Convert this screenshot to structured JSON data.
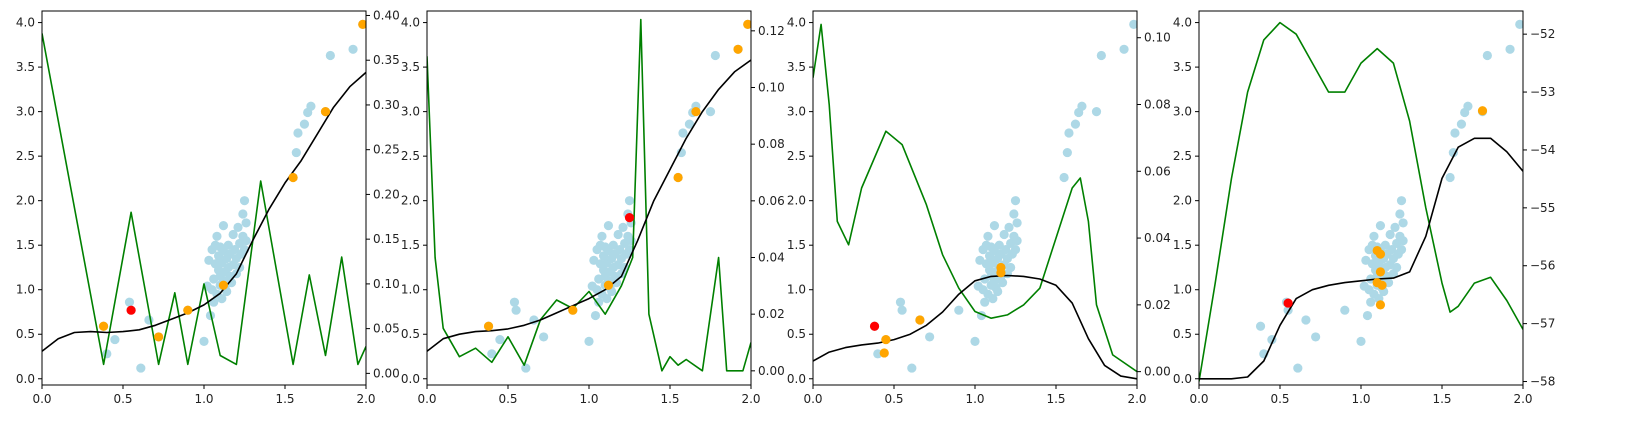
{
  "chart_data": [
    {
      "type": "scatter",
      "xlim": [
        0,
        2
      ],
      "ylim": [
        -0.07,
        4.13
      ],
      "y2lim": [
        -0.013,
        0.405
      ],
      "xticks": [
        "0.0",
        "0.5",
        "1.0",
        "1.5",
        "2.0"
      ],
      "yticks": [
        "0.0",
        "0.5",
        "1.0",
        "1.5",
        "2.0",
        "2.5",
        "3.0",
        "3.5",
        "4.0"
      ],
      "y2ticks": [
        "0.00",
        "0.05",
        "0.10",
        "0.15",
        "0.20",
        "0.25",
        "0.30",
        "0.35",
        "0.40"
      ],
      "colors": {
        "observations": "#add8e6",
        "selected": "#ffa500",
        "next": "#ff0000",
        "mean": "#000000",
        "acquisition": "#008000"
      },
      "selected_points": [
        [
          0.38,
          0.59
        ],
        [
          0.72,
          0.47
        ],
        [
          0.9,
          0.77
        ],
        [
          1.12,
          1.05
        ],
        [
          1.55,
          2.26
        ],
        [
          1.75,
          3.0
        ],
        [
          1.98,
          3.98
        ]
      ],
      "next_point": [
        0.55,
        0.77
      ],
      "mean_curve": [
        [
          0.0,
          0.31
        ],
        [
          0.1,
          0.45
        ],
        [
          0.2,
          0.52
        ],
        [
          0.3,
          0.53
        ],
        [
          0.4,
          0.52
        ],
        [
          0.5,
          0.53
        ],
        [
          0.6,
          0.55
        ],
        [
          0.7,
          0.6
        ],
        [
          0.8,
          0.67
        ],
        [
          0.9,
          0.74
        ],
        [
          1.0,
          0.83
        ],
        [
          1.1,
          0.96
        ],
        [
          1.2,
          1.18
        ],
        [
          1.3,
          1.55
        ],
        [
          1.4,
          1.9
        ],
        [
          1.5,
          2.2
        ],
        [
          1.6,
          2.45
        ],
        [
          1.7,
          2.75
        ],
        [
          1.8,
          3.05
        ],
        [
          1.9,
          3.28
        ],
        [
          2.0,
          3.44
        ]
      ],
      "acquisition_curve": [
        [
          0.0,
          0.38
        ],
        [
          0.38,
          0.01
        ],
        [
          0.55,
          0.18
        ],
        [
          0.72,
          0.01
        ],
        [
          0.82,
          0.09
        ],
        [
          0.9,
          0.01
        ],
        [
          1.0,
          0.1
        ],
        [
          1.1,
          0.02
        ],
        [
          1.2,
          0.01
        ],
        [
          1.35,
          0.215
        ],
        [
          1.55,
          0.01
        ],
        [
          1.65,
          0.11
        ],
        [
          1.75,
          0.02
        ],
        [
          1.85,
          0.13
        ],
        [
          1.95,
          0.01
        ],
        [
          2.0,
          0.03
        ]
      ]
    },
    {
      "type": "scatter",
      "xlim": [
        0,
        2
      ],
      "ylim": [
        -0.07,
        4.13
      ],
      "y2lim": [
        -0.005,
        0.127
      ],
      "xticks": [
        "0.0",
        "0.5",
        "1.0",
        "1.5",
        "2.0"
      ],
      "yticks": [
        "0.0",
        "0.5",
        "1.0",
        "1.5",
        "2.0",
        "2.5",
        "3.0",
        "3.5",
        "4.0"
      ],
      "y2ticks": [
        "0.00",
        "0.02",
        "0.04",
        "0.06",
        "0.08",
        "0.10",
        "0.12"
      ],
      "colors": {
        "observations": "#add8e6",
        "selected": "#ffa500",
        "next": "#ff0000",
        "mean": "#000000",
        "acquisition": "#008000"
      },
      "selected_points": [
        [
          0.38,
          0.59
        ],
        [
          0.9,
          0.77
        ],
        [
          1.12,
          1.05
        ],
        [
          1.55,
          2.26
        ],
        [
          1.66,
          3.0
        ],
        [
          1.92,
          3.7
        ],
        [
          1.98,
          3.98
        ]
      ],
      "next_point": [
        1.25,
        1.81
      ],
      "mean_curve": [
        [
          0.0,
          0.31
        ],
        [
          0.1,
          0.45
        ],
        [
          0.2,
          0.5
        ],
        [
          0.3,
          0.53
        ],
        [
          0.4,
          0.54
        ],
        [
          0.5,
          0.56
        ],
        [
          0.6,
          0.6
        ],
        [
          0.7,
          0.66
        ],
        [
          0.8,
          0.74
        ],
        [
          0.9,
          0.82
        ],
        [
          1.0,
          0.9
        ],
        [
          1.1,
          1.0
        ],
        [
          1.2,
          1.15
        ],
        [
          1.3,
          1.55
        ],
        [
          1.4,
          2.0
        ],
        [
          1.5,
          2.35
        ],
        [
          1.6,
          2.7
        ],
        [
          1.7,
          3.0
        ],
        [
          1.8,
          3.25
        ],
        [
          1.9,
          3.45
        ],
        [
          2.0,
          3.58
        ]
      ],
      "acquisition_curve": [
        [
          0.0,
          0.111
        ],
        [
          0.05,
          0.04
        ],
        [
          0.1,
          0.015
        ],
        [
          0.2,
          0.005
        ],
        [
          0.3,
          0.008
        ],
        [
          0.4,
          0.003
        ],
        [
          0.5,
          0.012
        ],
        [
          0.6,
          0.002
        ],
        [
          0.7,
          0.018
        ],
        [
          0.8,
          0.025
        ],
        [
          0.9,
          0.022
        ],
        [
          1.0,
          0.028
        ],
        [
          1.1,
          0.02
        ],
        [
          1.2,
          0.03
        ],
        [
          1.27,
          0.04
        ],
        [
          1.32,
          0.124
        ],
        [
          1.37,
          0.02
        ],
        [
          1.45,
          0.0
        ],
        [
          1.5,
          0.005
        ],
        [
          1.55,
          0.002
        ],
        [
          1.6,
          0.004
        ],
        [
          1.7,
          0.0
        ],
        [
          1.8,
          0.04
        ],
        [
          1.85,
          0.0
        ],
        [
          1.95,
          0.0
        ],
        [
          2.0,
          0.01
        ]
      ]
    },
    {
      "type": "scatter",
      "xlim": [
        0,
        2
      ],
      "ylim": [
        -0.07,
        4.13
      ],
      "y2lim": [
        -0.004,
        0.108
      ],
      "xticks": [
        "0.0",
        "0.5",
        "1.0",
        "1.5",
        "2.0"
      ],
      "yticks": [
        "0.0",
        "0.5",
        "1.0",
        "1.5",
        "2.0",
        "2.5",
        "3.0",
        "3.5",
        "4.0"
      ],
      "y2ticks": [
        "0.00",
        "0.02",
        "0.04",
        "0.06",
        "0.08",
        "0.10"
      ],
      "colors": {
        "observations": "#add8e6",
        "selected": "#ffa500",
        "next": "#ff0000",
        "mean": "#000000",
        "acquisition": "#008000"
      },
      "selected_points": [
        [
          0.44,
          0.29
        ],
        [
          0.45,
          0.44
        ],
        [
          0.66,
          0.66
        ],
        [
          1.16,
          1.25
        ],
        [
          1.16,
          1.19
        ]
      ],
      "next_point": [
        0.38,
        0.59
      ],
      "mean_curve": [
        [
          0.0,
          0.2
        ],
        [
          0.1,
          0.3
        ],
        [
          0.2,
          0.35
        ],
        [
          0.3,
          0.38
        ],
        [
          0.4,
          0.4
        ],
        [
          0.5,
          0.44
        ],
        [
          0.6,
          0.5
        ],
        [
          0.7,
          0.6
        ],
        [
          0.8,
          0.75
        ],
        [
          0.9,
          0.95
        ],
        [
          1.0,
          1.1
        ],
        [
          1.1,
          1.15
        ],
        [
          1.2,
          1.16
        ],
        [
          1.3,
          1.15
        ],
        [
          1.4,
          1.12
        ],
        [
          1.5,
          1.05
        ],
        [
          1.6,
          0.85
        ],
        [
          1.7,
          0.45
        ],
        [
          1.8,
          0.15
        ],
        [
          1.9,
          0.03
        ],
        [
          2.0,
          0.0
        ]
      ],
      "acquisition_curve": [
        [
          0.0,
          0.088
        ],
        [
          0.05,
          0.104
        ],
        [
          0.1,
          0.08
        ],
        [
          0.15,
          0.045
        ],
        [
          0.22,
          0.038
        ],
        [
          0.3,
          0.055
        ],
        [
          0.45,
          0.072
        ],
        [
          0.55,
          0.068
        ],
        [
          0.7,
          0.05
        ],
        [
          0.8,
          0.035
        ],
        [
          0.9,
          0.025
        ],
        [
          1.0,
          0.018
        ],
        [
          1.1,
          0.016
        ],
        [
          1.2,
          0.017
        ],
        [
          1.3,
          0.02
        ],
        [
          1.4,
          0.025
        ],
        [
          1.5,
          0.04
        ],
        [
          1.6,
          0.055
        ],
        [
          1.65,
          0.058
        ],
        [
          1.7,
          0.045
        ],
        [
          1.75,
          0.02
        ],
        [
          1.85,
          0.005
        ],
        [
          2.0,
          0.0
        ]
      ]
    },
    {
      "type": "scatter",
      "xlim": [
        0,
        2
      ],
      "ylim": [
        -0.07,
        4.13
      ],
      "y2lim": [
        -58.06,
        -51.6
      ],
      "xticks": [
        "0.0",
        "0.5",
        "1.0",
        "1.5",
        "2.0"
      ],
      "yticks": [
        "0.0",
        "0.5",
        "1.0",
        "1.5",
        "2.0",
        "2.5",
        "3.0",
        "3.5",
        "4.0"
      ],
      "y2ticks": [
        "−52",
        "−53",
        "−54",
        "−55",
        "−56",
        "−57",
        "−58"
      ],
      "y2tick_values": [
        -52,
        -53,
        -54,
        -55,
        -56,
        -57,
        -58
      ],
      "colors": {
        "observations": "#add8e6",
        "selected": "#ffa500",
        "next": "#ff0000",
        "mean": "#000000",
        "acquisition": "#008000"
      },
      "selected_points": [
        [
          1.1,
          1.44
        ],
        [
          1.12,
          1.4
        ],
        [
          1.1,
          1.08
        ],
        [
          1.13,
          1.05
        ],
        [
          1.12,
          1.2
        ],
        [
          1.12,
          0.83
        ],
        [
          1.75,
          3.01
        ]
      ],
      "next_point": [
        0.55,
        0.85
      ],
      "mean_curve": [
        [
          0.0,
          0.0
        ],
        [
          0.1,
          0.0
        ],
        [
          0.2,
          0.0
        ],
        [
          0.3,
          0.02
        ],
        [
          0.4,
          0.2
        ],
        [
          0.5,
          0.6
        ],
        [
          0.6,
          0.9
        ],
        [
          0.7,
          1.0
        ],
        [
          0.8,
          1.05
        ],
        [
          0.9,
          1.08
        ],
        [
          1.0,
          1.1
        ],
        [
          1.1,
          1.12
        ],
        [
          1.2,
          1.13
        ],
        [
          1.3,
          1.2
        ],
        [
          1.4,
          1.6
        ],
        [
          1.5,
          2.25
        ],
        [
          1.6,
          2.6
        ],
        [
          1.7,
          2.7
        ],
        [
          1.8,
          2.7
        ],
        [
          1.9,
          2.55
        ],
        [
          2.0,
          2.33
        ]
      ],
      "acquisition_curve": [
        [
          0.0,
          -58.0
        ],
        [
          0.1,
          -56.3
        ],
        [
          0.2,
          -54.5
        ],
        [
          0.3,
          -53.0
        ],
        [
          0.4,
          -52.1
        ],
        [
          0.5,
          -51.8
        ],
        [
          0.6,
          -52.0
        ],
        [
          0.7,
          -52.5
        ],
        [
          0.8,
          -53.0
        ],
        [
          0.9,
          -53.0
        ],
        [
          1.0,
          -52.5
        ],
        [
          1.1,
          -52.25
        ],
        [
          1.2,
          -52.5
        ],
        [
          1.3,
          -53.5
        ],
        [
          1.4,
          -55.0
        ],
        [
          1.5,
          -56.3
        ],
        [
          1.55,
          -56.8
        ],
        [
          1.6,
          -56.7
        ],
        [
          1.7,
          -56.3
        ],
        [
          1.8,
          -56.2
        ],
        [
          1.9,
          -56.6
        ],
        [
          2.0,
          -57.1
        ]
      ]
    }
  ],
  "observations": [
    [
      0.38,
      0.59
    ],
    [
      0.4,
      0.28
    ],
    [
      0.45,
      0.44
    ],
    [
      0.54,
      0.86
    ],
    [
      0.55,
      0.77
    ],
    [
      0.61,
      0.12
    ],
    [
      0.66,
      0.66
    ],
    [
      0.72,
      0.47
    ],
    [
      0.9,
      0.77
    ],
    [
      1.0,
      0.42
    ],
    [
      1.02,
      1.04
    ],
    [
      1.03,
      1.33
    ],
    [
      1.04,
      0.71
    ],
    [
      1.05,
      1.0
    ],
    [
      1.05,
      1.45
    ],
    [
      1.06,
      1.12
    ],
    [
      1.06,
      0.86
    ],
    [
      1.07,
      1.29
    ],
    [
      1.07,
      1.5
    ],
    [
      1.08,
      0.95
    ],
    [
      1.08,
      1.6
    ],
    [
      1.09,
      1.22
    ],
    [
      1.09,
      1.38
    ],
    [
      1.1,
      1.05
    ],
    [
      1.1,
      1.15
    ],
    [
      1.1,
      1.48
    ],
    [
      1.11,
      0.9
    ],
    [
      1.11,
      1.3
    ],
    [
      1.12,
      1.1
    ],
    [
      1.12,
      1.44
    ],
    [
      1.12,
      1.72
    ],
    [
      1.13,
      1.2
    ],
    [
      1.13,
      1.02
    ],
    [
      1.14,
      1.35
    ],
    [
      1.14,
      0.98
    ],
    [
      1.15,
      1.25
    ],
    [
      1.15,
      1.5
    ],
    [
      1.16,
      1.15
    ],
    [
      1.16,
      1.4
    ],
    [
      1.17,
      1.08
    ],
    [
      1.18,
      1.28
    ],
    [
      1.18,
      1.62
    ],
    [
      1.19,
      1.45
    ],
    [
      1.2,
      1.18
    ],
    [
      1.2,
      1.35
    ],
    [
      1.21,
      1.7
    ],
    [
      1.22,
      1.52
    ],
    [
      1.22,
      1.25
    ],
    [
      1.23,
      1.4
    ],
    [
      1.24,
      1.85
    ],
    [
      1.24,
      1.6
    ],
    [
      1.25,
      2.0
    ],
    [
      1.25,
      1.45
    ],
    [
      1.26,
      1.55
    ],
    [
      1.26,
      1.75
    ],
    [
      1.55,
      2.26
    ],
    [
      1.57,
      2.54
    ],
    [
      1.58,
      2.76
    ],
    [
      1.62,
      2.86
    ],
    [
      1.64,
      2.99
    ],
    [
      1.66,
      3.06
    ],
    [
      1.75,
      3.0
    ],
    [
      1.78,
      3.63
    ],
    [
      1.92,
      3.7
    ],
    [
      1.98,
      3.98
    ]
  ]
}
